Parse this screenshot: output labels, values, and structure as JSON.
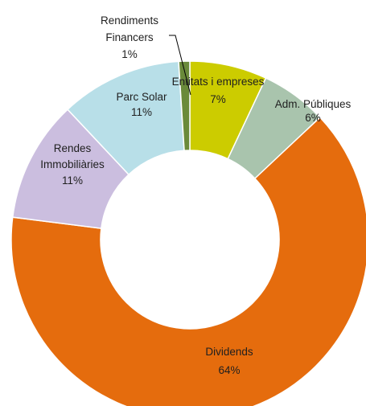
{
  "chart_data": {
    "type": "pie",
    "title": "",
    "donut": true,
    "legend": "none",
    "start_angle_deg": 0,
    "direction": "clockwise",
    "slices": [
      {
        "label": "Entitats i empreses",
        "percent_label": "7%",
        "value": 7,
        "color": "#cccc00"
      },
      {
        "label": "Adm. Públiques",
        "percent_label": "6%",
        "value": 6,
        "color": "#a9c4ad"
      },
      {
        "label": "Dividends",
        "percent_label": "64%",
        "value": 64,
        "color": "#e56c0d"
      },
      {
        "label": "Rendes Immobiliàries",
        "percent_label": "11%",
        "value": 11,
        "color": "#cbbedf"
      },
      {
        "label": "Parc Solar",
        "percent_label": "11%",
        "value": 11,
        "color": "#b8dfe8"
      },
      {
        "label": "Rendiments Financers",
        "percent_label": "1%",
        "value": 1,
        "color": "#6a8a3a"
      }
    ]
  }
}
